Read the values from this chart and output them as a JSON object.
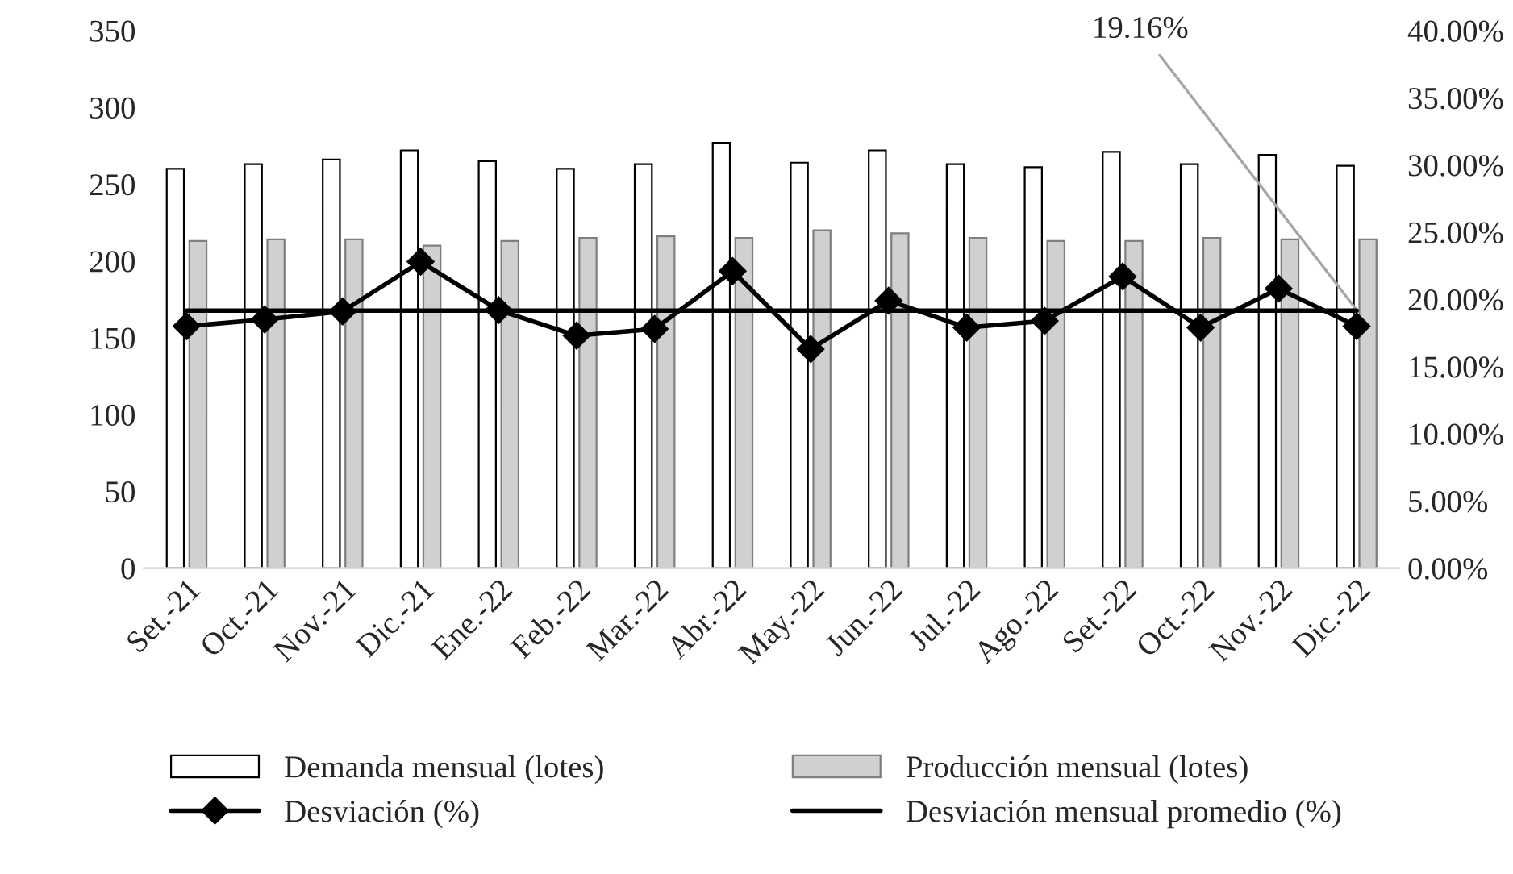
{
  "chart_data": {
    "type": "bar",
    "categories": [
      "Set.-21",
      "Oct.-21",
      "Nov.-21",
      "Dic.-21",
      "Ene.-22",
      "Feb.-22",
      "Mar.-22",
      "Abr.-22",
      "May.-22",
      "Jun.-22",
      "Jul.-22",
      "Ago.-22",
      "Set.-22",
      "Oct.-22",
      "Nov.-22",
      "Dic.-22"
    ],
    "series": [
      {
        "name": "Demanda mensual (lotes)",
        "color": "#ffffff",
        "values": [
          260,
          263,
          266,
          272,
          265,
          260,
          263,
          277,
          264,
          272,
          263,
          261,
          271,
          263,
          269,
          262
        ]
      },
      {
        "name": "Producción mensual (lotes)",
        "color": "#d0d0d0",
        "values": [
          213,
          214,
          214,
          210,
          213,
          215,
          216,
          215,
          220,
          218,
          215,
          213,
          213,
          215,
          214,
          214
        ]
      },
      {
        "name": "Desviación (%)",
        "type": "line",
        "axis": "y2",
        "color": "#000000",
        "marker": "diamond",
        "values": [
          18.0,
          18.5,
          19.1,
          22.8,
          19.2,
          17.3,
          17.8,
          22.1,
          16.3,
          19.9,
          17.9,
          18.4,
          21.7,
          17.9,
          20.8,
          18.0
        ]
      },
      {
        "name": "Desviación mensual promedio (%)",
        "type": "line",
        "axis": "y2",
        "color": "#000000",
        "marker": "none",
        "values": [
          19.16,
          19.16,
          19.16,
          19.16,
          19.16,
          19.16,
          19.16,
          19.16,
          19.16,
          19.16,
          19.16,
          19.16,
          19.16,
          19.16,
          19.16,
          19.16
        ]
      }
    ],
    "ylim": [
      0,
      350
    ],
    "yticks": [
      0,
      50,
      100,
      150,
      200,
      250,
      300,
      350
    ],
    "y2lim": [
      0,
      40
    ],
    "y2ticks": [
      {
        "value": 0,
        "label": "0.00%"
      },
      {
        "value": 5,
        "label": "5.00%"
      },
      {
        "value": 10,
        "label": "10.00%"
      },
      {
        "value": 15,
        "label": "15.00%"
      },
      {
        "value": 20,
        "label": "20.00%"
      },
      {
        "value": 25,
        "label": "25.00%"
      },
      {
        "value": 30,
        "label": "30.00%"
      },
      {
        "value": 35,
        "label": "35.00%"
      },
      {
        "value": 40,
        "label": "40.00%"
      }
    ],
    "annotations": [
      {
        "text": "19.16%",
        "x": "Dic.-22"
      }
    ],
    "legend": "bottom",
    "grid": false
  }
}
